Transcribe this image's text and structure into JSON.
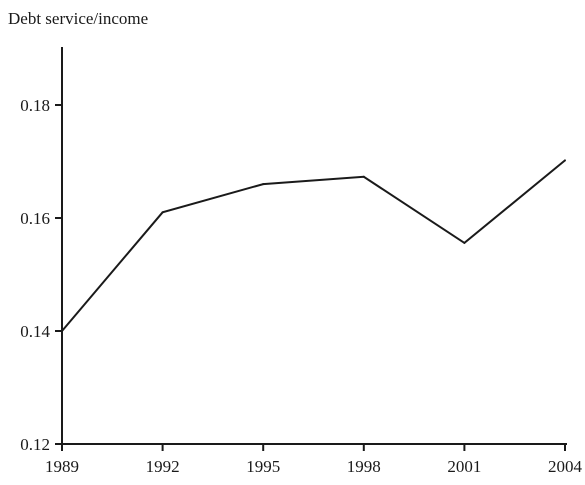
{
  "chart_data": {
    "type": "line",
    "title": "",
    "xlabel": "",
    "ylabel": "Debt service/income",
    "x": [
      "1989",
      "1992",
      "1995",
      "1998",
      "2001",
      "2004"
    ],
    "series": [
      {
        "values": [
          0.14,
          0.161,
          0.166,
          0.1673,
          0.1556,
          0.1702
        ]
      }
    ],
    "ylim": [
      0.12,
      0.19
    ],
    "yticks": [
      "0.12",
      "0.14",
      "0.16",
      "0.18"
    ],
    "grid": false,
    "line_color": "#1a1a1a"
  }
}
